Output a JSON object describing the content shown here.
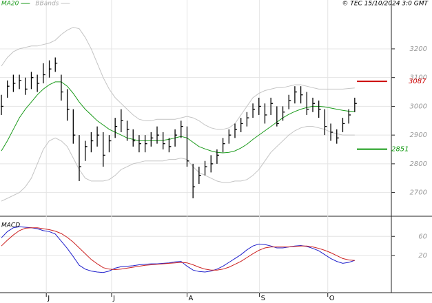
{
  "copyright": "© TEC 15/10/2024 3:0 GMT",
  "chart_data": [
    {
      "type": "ohlc",
      "xlim": [
        0,
        65
      ],
      "ylim": [
        2620,
        3370
      ],
      "yticks": [
        3200,
        3100,
        3000,
        2900,
        2800,
        2700
      ],
      "grid": true,
      "xticks": [
        {
          "value": 7.5,
          "label": "J"
        },
        {
          "value": 18.4,
          "label": "J"
        },
        {
          "value": 31,
          "label": "A"
        },
        {
          "value": 43.1,
          "label": "S"
        },
        {
          "value": 54.5,
          "label": "O"
        }
      ],
      "bar_color": "#000000",
      "high": [
        3040,
        3090,
        3110,
        3110,
        3100,
        3120,
        3110,
        3150,
        3160,
        3170,
        3110,
        3060,
        2990,
        2900,
        2880,
        2910,
        2930,
        2910,
        2900,
        2960,
        2990,
        2950,
        2920,
        2900,
        2900,
        2910,
        2930,
        2910,
        2890,
        2920,
        2950,
        2930,
        2800,
        2790,
        2810,
        2830,
        2850,
        2890,
        2920,
        2940,
        2960,
        2980,
        3010,
        3030,
        3010,
        3030,
        3000,
        3000,
        3040,
        3070,
        3070,
        3050,
        3030,
        3020,
        2990,
        2940,
        2920,
        2960,
        2990,
        3030
      ],
      "low": [
        2970,
        3030,
        3050,
        3060,
        3040,
        3060,
        3050,
        3080,
        3100,
        3120,
        3020,
        2950,
        2870,
        2740,
        2810,
        2840,
        2860,
        2790,
        2840,
        2890,
        2910,
        2880,
        2860,
        2840,
        2840,
        2860,
        2870,
        2850,
        2840,
        2860,
        2890,
        2790,
        2680,
        2730,
        2760,
        2770,
        2800,
        2840,
        2870,
        2890,
        2910,
        2930,
        2960,
        2970,
        2940,
        2970,
        2930,
        2950,
        2990,
        3010,
        3010,
        2970,
        2980,
        2960,
        2900,
        2880,
        2870,
        2910,
        2940,
        2980
      ],
      "close": [
        3000,
        3070,
        3080,
        3090,
        3060,
        3100,
        3080,
        3110,
        3130,
        3150,
        3050,
        2990,
        2900,
        2790,
        2860,
        2880,
        2900,
        2830,
        2880,
        2930,
        2950,
        2920,
        2880,
        2870,
        2870,
        2890,
        2900,
        2870,
        2860,
        2900,
        2930,
        2810,
        2720,
        2760,
        2790,
        2800,
        2830,
        2870,
        2900,
        2920,
        2940,
        2960,
        2990,
        3000,
        2970,
        3010,
        2940,
        2980,
        3020,
        3050,
        3040,
        2990,
        3010,
        2990,
        2930,
        2910,
        2890,
        2940,
        2970,
        3010
      ],
      "series": [
        {
          "name": "MA20",
          "color": "#1a9a1a",
          "values": [
            2845,
            2880,
            2920,
            2960,
            2990,
            3015,
            3040,
            3060,
            3075,
            3085,
            3085,
            3070,
            3045,
            3015,
            2990,
            2970,
            2950,
            2935,
            2920,
            2910,
            2900,
            2890,
            2885,
            2880,
            2880,
            2880,
            2880,
            2882,
            2885,
            2890,
            2895,
            2890,
            2875,
            2860,
            2852,
            2845,
            2840,
            2838,
            2840,
            2845,
            2855,
            2868,
            2885,
            2900,
            2915,
            2930,
            2945,
            2960,
            2972,
            2982,
            2990,
            2996,
            3000,
            3000,
            2998,
            2994,
            2990,
            2986,
            2983,
            2982
          ]
        },
        {
          "name": "BBands",
          "color": "#c4c4c4",
          "upper": [
            3140,
            3170,
            3190,
            3200,
            3205,
            3210,
            3210,
            3215,
            3220,
            3230,
            3250,
            3265,
            3275,
            3270,
            3240,
            3200,
            3150,
            3100,
            3060,
            3030,
            3010,
            2990,
            2970,
            2955,
            2950,
            2950,
            2955,
            2955,
            2955,
            2955,
            2960,
            2965,
            2960,
            2950,
            2935,
            2925,
            2920,
            2920,
            2925,
            2940,
            2970,
            3000,
            3030,
            3045,
            3055,
            3060,
            3065,
            3065,
            3070,
            3075,
            3075,
            3070,
            3065,
            3060,
            3060,
            3060,
            3060,
            3060,
            3062,
            3064
          ],
          "lower": [
            2670,
            2680,
            2690,
            2700,
            2720,
            2750,
            2800,
            2850,
            2880,
            2890,
            2880,
            2860,
            2820,
            2780,
            2750,
            2740,
            2740,
            2740,
            2745,
            2760,
            2780,
            2790,
            2800,
            2805,
            2810,
            2810,
            2810,
            2810,
            2815,
            2815,
            2820,
            2815,
            2790,
            2770,
            2760,
            2750,
            2740,
            2735,
            2735,
            2740,
            2740,
            2745,
            2760,
            2780,
            2810,
            2840,
            2860,
            2880,
            2900,
            2915,
            2925,
            2930,
            2930,
            2925,
            2920,
            2910,
            2905,
            2900,
            2900,
            2900
          ]
        }
      ],
      "levels": [
        {
          "value": 3087,
          "color": "#cc0000"
        },
        {
          "value": 2851,
          "color": "#119911"
        }
      ]
    },
    {
      "type": "line",
      "title": "MACD",
      "ylim": [
        -57,
        99
      ],
      "yticks": [
        60,
        20
      ],
      "series": [
        {
          "color": "#2020cc",
          "values": [
            57,
            70,
            78,
            80,
            79,
            78,
            76,
            72,
            70,
            65,
            50,
            35,
            18,
            0,
            -8,
            -12,
            -14,
            -15,
            -12,
            -6,
            -3,
            -2,
            -1,
            1,
            2,
            3,
            3,
            4,
            5,
            7,
            8,
            -2,
            -10,
            -13,
            -14,
            -12,
            -8,
            -2,
            6,
            14,
            22,
            32,
            40,
            44,
            43,
            40,
            36,
            36,
            38,
            40,
            41,
            39,
            35,
            30,
            22,
            14,
            8,
            4,
            6,
            10
          ]
        },
        {
          "color": "#cc2020",
          "values": [
            40,
            52,
            63,
            72,
            77,
            78,
            78,
            76,
            74,
            71,
            66,
            58,
            48,
            36,
            24,
            12,
            3,
            -5,
            -8,
            -9,
            -8,
            -6,
            -4,
            -2,
            0,
            1,
            2,
            3,
            4,
            5,
            6,
            5,
            1,
            -4,
            -8,
            -10,
            -10,
            -8,
            -4,
            2,
            8,
            16,
            24,
            31,
            36,
            38,
            38,
            38,
            38,
            39,
            40,
            40,
            38,
            35,
            31,
            26,
            20,
            14,
            11,
            10
          ]
        }
      ]
    }
  ]
}
